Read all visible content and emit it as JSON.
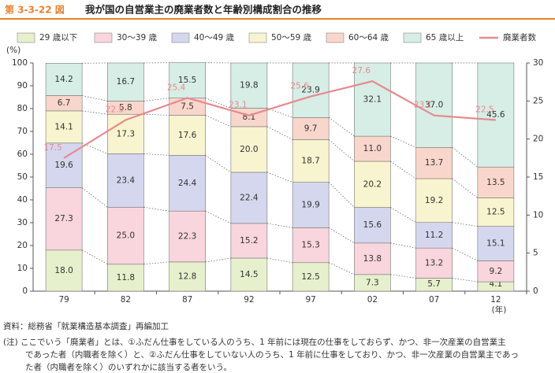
{
  "chart_data": {
    "type": "stacked-bar-line",
    "figure_label": "第 3-3-22 図",
    "title": "我が国の自営業主の廃業者数と年齢別構成割合の推移",
    "y_unit": "(%)",
    "x_unit": "(年)",
    "categories": [
      "79",
      "82",
      "87",
      "92",
      "97",
      "02",
      "07",
      "12"
    ],
    "ylim": [
      0,
      100
    ],
    "yticks": [
      0,
      10,
      20,
      30,
      40,
      50,
      60,
      70,
      80,
      90,
      100
    ],
    "y2lim": [
      0,
      30
    ],
    "y2ticks": [
      0,
      5,
      10,
      15,
      20,
      25,
      30
    ],
    "series": [
      {
        "name": "29 歳以下",
        "color": "#e7f0cd",
        "values": [
          18.0,
          11.8,
          12.8,
          14.5,
          12.5,
          7.3,
          5.7,
          4.1
        ],
        "value_labels": [
          "18.0",
          "11.8",
          "12.8",
          "14.5",
          "12.5",
          "7.3",
          "5.7",
          "4.1"
        ]
      },
      {
        "name": "30〜39 歳",
        "color": "#f9d5dd",
        "values": [
          27.3,
          25.0,
          22.3,
          15.2,
          15.3,
          13.8,
          13.2,
          9.2
        ],
        "value_labels": [
          "27.3",
          "25.0",
          "22.3",
          "15.2",
          "15.3",
          "13.8",
          "13.2",
          "9.2"
        ]
      },
      {
        "name": "40〜49 歳",
        "color": "#d5d7ee",
        "values": [
          19.6,
          23.4,
          24.4,
          22.4,
          19.9,
          15.6,
          11.2,
          15.1
        ],
        "value_labels": [
          "19.6",
          "23.4",
          "24.4",
          "22.4",
          "19.9",
          "15.6",
          "11.2",
          "15.1"
        ]
      },
      {
        "name": "50〜59 歳",
        "color": "#f8f4cf",
        "values": [
          14.1,
          17.3,
          17.6,
          20.0,
          18.7,
          20.2,
          19.2,
          12.5
        ],
        "value_labels": [
          "14.1",
          "17.3",
          "17.6",
          "20.0",
          "18.7",
          "20.2",
          "19.2",
          "12.5"
        ]
      },
      {
        "name": "60〜64 歳",
        "color": "#f9d6cb",
        "values": [
          6.7,
          5.8,
          7.5,
          8.1,
          9.7,
          11.0,
          13.7,
          13.5
        ],
        "value_labels": [
          "6.7",
          "5.8",
          "7.5",
          "8.1",
          "9.7",
          "11.0",
          "13.7",
          "13.5"
        ]
      },
      {
        "name": "65 歳以上",
        "color": "#d6eee6",
        "values": [
          14.2,
          16.7,
          15.5,
          19.8,
          23.9,
          32.1,
          37.0,
          45.6
        ],
        "value_labels": [
          "14.2",
          "16.7",
          "15.5",
          "19.8",
          "23.9",
          "32.1",
          "37.0",
          "45.6"
        ]
      },
      {
        "name": "廃業者数",
        "color": "#e8898f",
        "axis": "y2",
        "values": [
          17.5,
          22.5,
          25.4,
          23.1,
          25.6,
          27.6,
          23.1,
          22.5
        ]
      }
    ],
    "source": "資料：総務省「就業構造基本調査」再編加工",
    "note": [
      "(注)  ここでいう「廃業者」とは、①ふだん仕事をしている人のうち、1 年前には現在の仕事をしておらず、かつ、非一次産業の自営業主",
      "であった者（内職者を除く）と、②ふだん仕事をしていない人のうち、1 年前に仕事をしており、かつ、非一次産業の自営業主であっ",
      "た者（内職者を除く）のいずれかに該当する者をいう。"
    ]
  }
}
